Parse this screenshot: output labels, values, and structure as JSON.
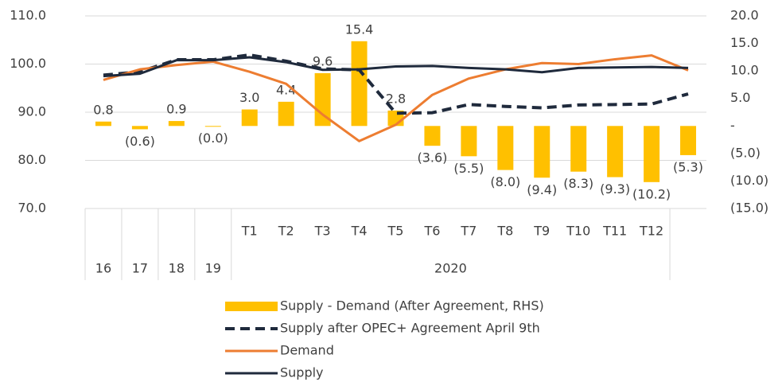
{
  "chart_data": {
    "type": "combo",
    "categories": [
      null,
      null,
      null,
      null,
      "T1",
      "T2",
      "T3",
      "T4",
      "T5",
      "T6",
      "T7",
      "T8",
      "T9",
      "T10",
      "T11",
      "T12",
      null
    ],
    "group_labels": [
      "16",
      "17",
      "18",
      "19",
      "2020",
      null
    ],
    "group_sizes": [
      1,
      1,
      1,
      1,
      12,
      1
    ],
    "series": [
      {
        "name": "Supply - Demand (After Agreement, RHS)",
        "type": "bar",
        "axis": "y2",
        "color": "#FFC000",
        "values": [
          0.8,
          -0.6,
          0.9,
          -0.02,
          3.0,
          4.4,
          9.6,
          15.4,
          2.8,
          -3.6,
          -5.5,
          -8.0,
          -9.4,
          -8.3,
          -9.3,
          -10.2,
          -5.3
        ],
        "value_labels": [
          "0.8",
          "(0.6)",
          "0.9",
          "(0.0)",
          "3.0",
          "4.4",
          "9.6",
          "15.4",
          "2.8",
          "(3.6)",
          "(5.5)",
          "(8.0)",
          "(9.4)",
          "(8.3)",
          "(9.3)",
          "(10.2)",
          "(5.3)"
        ]
      },
      {
        "name": "Supply after OPEC+ Agreement April 9th",
        "type": "line",
        "dashed": true,
        "color": "#1F2A3C",
        "values": [
          97.7,
          98.4,
          100.9,
          100.9,
          101.9,
          100.6,
          99.0,
          98.8,
          89.8,
          89.9,
          91.6,
          91.2,
          90.9,
          91.5,
          91.6,
          91.7,
          93.8
        ]
      },
      {
        "name": "Demand",
        "type": "line",
        "dashed": false,
        "color": "#ED7D31",
        "values": [
          96.7,
          98.9,
          99.8,
          100.5,
          98.4,
          95.9,
          89.5,
          84.0,
          87.4,
          93.6,
          97.0,
          98.9,
          100.2,
          100.0,
          101.0,
          101.8,
          98.7
        ]
      },
      {
        "name": "Supply",
        "type": "line",
        "dashed": false,
        "color": "#1F2A3C",
        "values": [
          97.5,
          98.0,
          100.8,
          100.8,
          101.4,
          100.4,
          98.8,
          98.9,
          99.5,
          99.6,
          99.2,
          98.9,
          98.3,
          99.2,
          99.3,
          99.4,
          99.2
        ]
      }
    ],
    "ylim": [
      70,
      110
    ],
    "yticks": [
      {
        "value": 70,
        "label": "70.0"
      },
      {
        "value": 80,
        "label": "80.0"
      },
      {
        "value": 90,
        "label": "90.0"
      },
      {
        "value": 100,
        "label": "100.0"
      },
      {
        "value": 110,
        "label": "110.0"
      }
    ],
    "y2lim": [
      -15,
      20
    ],
    "y2ticks": [
      {
        "value": -15,
        "label": "(15.0)"
      },
      {
        "value": -10,
        "label": "(10.0)"
      },
      {
        "value": -5,
        "label": "(5.0)"
      },
      {
        "value": 0,
        "label": "-"
      },
      {
        "value": 5,
        "label": "5.0"
      },
      {
        "value": 10,
        "label": "10.0"
      },
      {
        "value": 15,
        "label": "15.0"
      },
      {
        "value": 20,
        "label": "20.0"
      }
    ],
    "grid": true
  }
}
